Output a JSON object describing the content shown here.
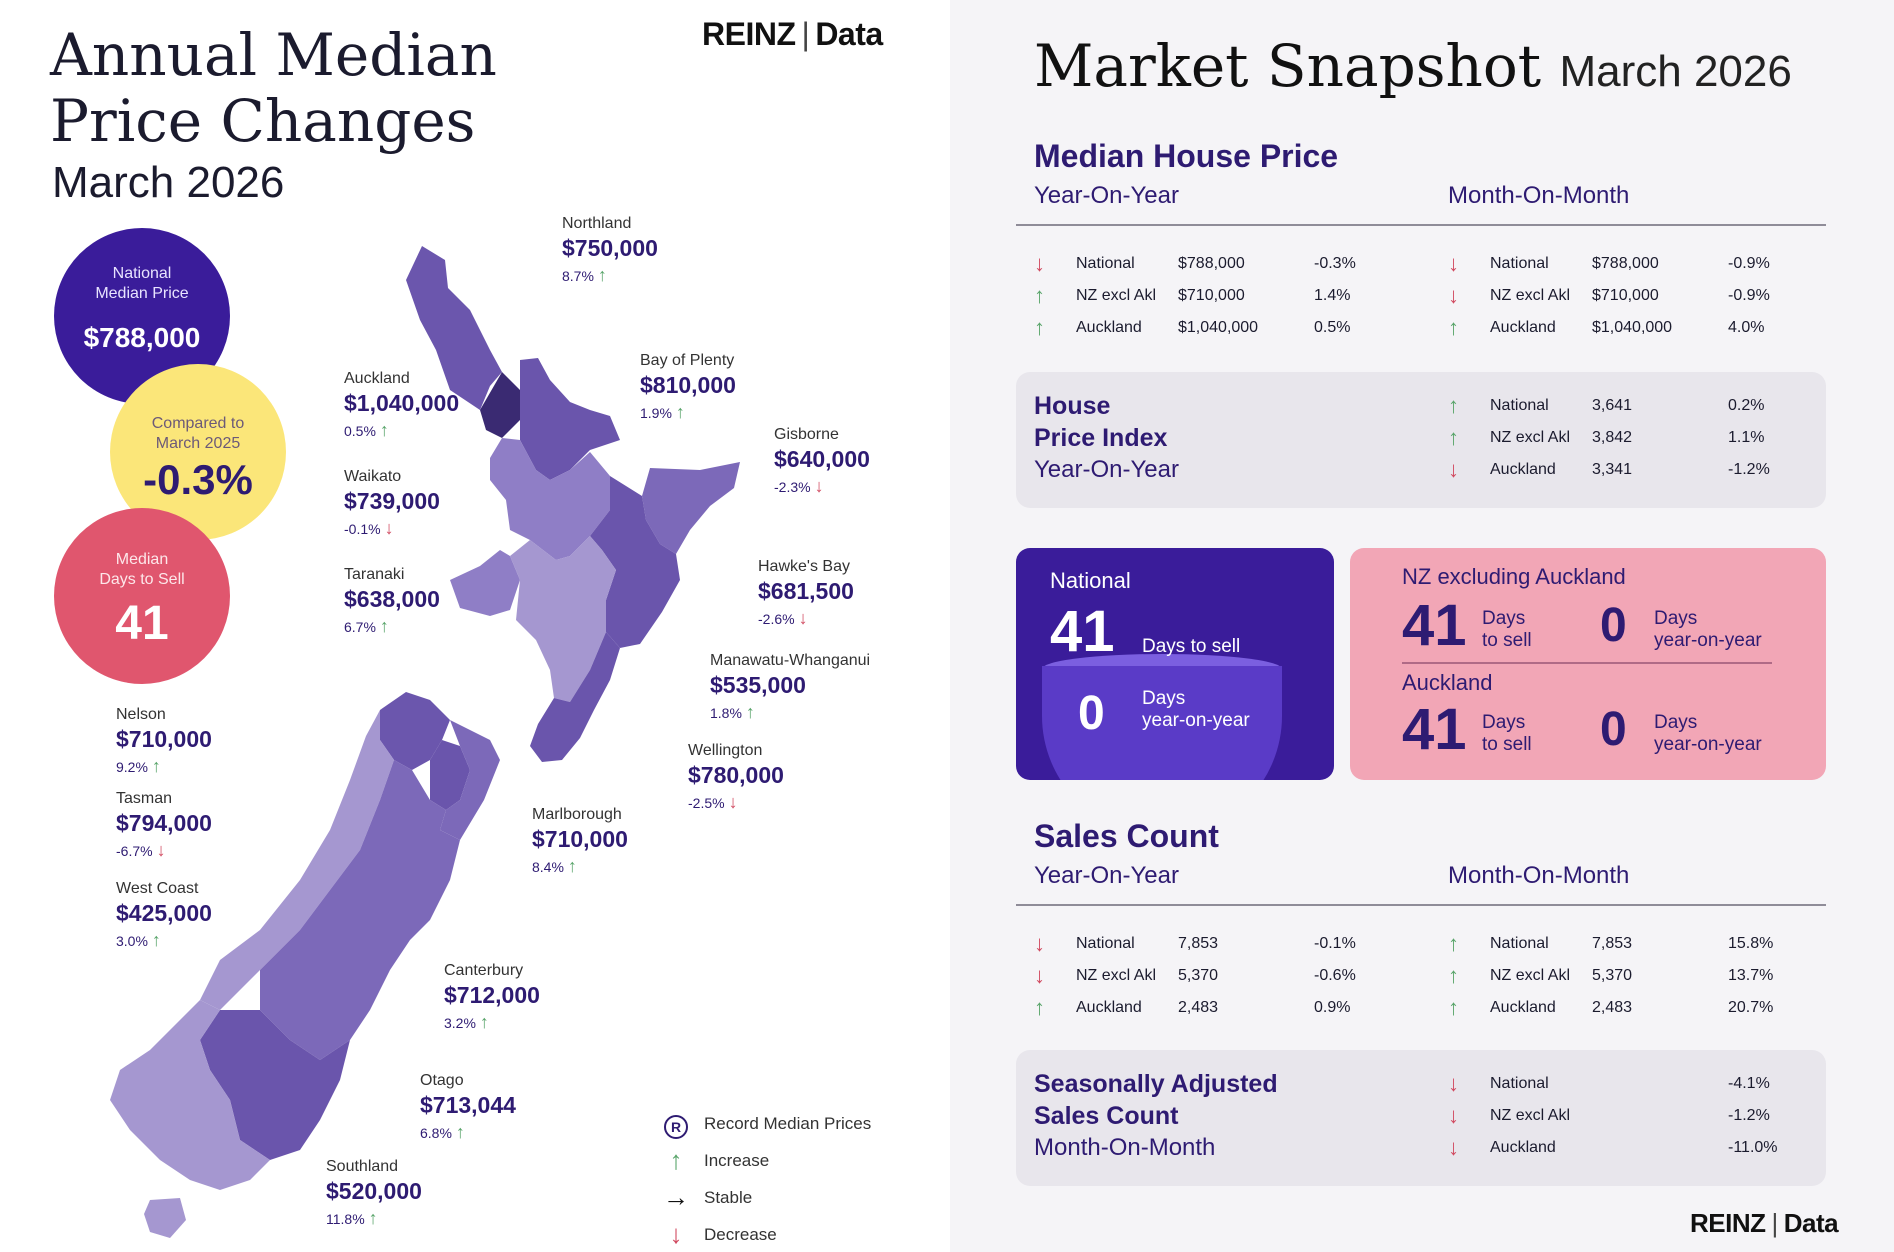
{
  "left": {
    "title_line1": "Annual Median",
    "title_line2": "Price Changes",
    "subtitle": "March 2026",
    "brand": {
      "name": "REINZ",
      "sep": "|",
      "suffix": "Data"
    },
    "national_median": {
      "label_line1": "National",
      "label_line2": "Median Price",
      "value": "$788,000"
    },
    "compared": {
      "label_line1": "Compared to",
      "label_line2": "March 2025",
      "value": "-0.3%"
    },
    "days_to_sell": {
      "label_line1": "Median",
      "label_line2": "Days to Sell",
      "value": "41"
    },
    "regions": [
      {
        "name": "Northland",
        "price": "$750,000",
        "change": "8.7%",
        "dir": "up"
      },
      {
        "name": "Auckland",
        "price": "$1,040,000",
        "change": "0.5%",
        "dir": "up"
      },
      {
        "name": "Bay of Plenty",
        "price": "$810,000",
        "change": "1.9%",
        "dir": "up"
      },
      {
        "name": "Gisborne",
        "price": "$640,000",
        "change": "-2.3%",
        "dir": "down"
      },
      {
        "name": "Waikato",
        "price": "$739,000",
        "change": "-0.1%",
        "dir": "down"
      },
      {
        "name": "Hawke's Bay",
        "price": "$681,500",
        "change": "-2.6%",
        "dir": "down"
      },
      {
        "name": "Taranaki",
        "price": "$638,000",
        "change": "6.7%",
        "dir": "up"
      },
      {
        "name": "Manawatu-Whanganui",
        "price": "$535,000",
        "change": "1.8%",
        "dir": "up"
      },
      {
        "name": "Wellington",
        "price": "$780,000",
        "change": "-2.5%",
        "dir": "down"
      },
      {
        "name": "Nelson",
        "price": "$710,000",
        "change": "9.2%",
        "dir": "up"
      },
      {
        "name": "Tasman",
        "price": "$794,000",
        "change": "-6.7%",
        "dir": "down"
      },
      {
        "name": "Marlborough",
        "price": "$710,000",
        "change": "8.4%",
        "dir": "up"
      },
      {
        "name": "West Coast",
        "price": "$425,000",
        "change": "3.0%",
        "dir": "up"
      },
      {
        "name": "Canterbury",
        "price": "$712,000",
        "change": "3.2%",
        "dir": "up"
      },
      {
        "name": "Otago",
        "price": "$713,044",
        "change": "6.8%",
        "dir": "up"
      },
      {
        "name": "Southland",
        "price": "$520,000",
        "change": "11.8%",
        "dir": "up"
      }
    ],
    "legend": [
      {
        "icon": "record-icon",
        "label": "Record Median Prices"
      },
      {
        "icon": "arrow-up-icon",
        "label": "Increase"
      },
      {
        "icon": "arrow-right-icon",
        "label": "Stable"
      },
      {
        "icon": "arrow-down-icon",
        "label": "Decrease"
      }
    ],
    "legend_badge": "R"
  },
  "right": {
    "title": "Market Snapshot",
    "title_date": "March 2026",
    "median_price": {
      "heading": "Median House Price",
      "yoy_label": "Year-On-Year",
      "mom_label": "Month-On-Month",
      "yoy": [
        {
          "dir": "down",
          "name": "National",
          "value": "$788,000",
          "pct": "-0.3%"
        },
        {
          "dir": "up",
          "name": "NZ excl Akl",
          "value": "$710,000",
          "pct": "1.4%"
        },
        {
          "dir": "up",
          "name": "Auckland",
          "value": "$1,040,000",
          "pct": "0.5%"
        }
      ],
      "mom": [
        {
          "dir": "down",
          "name": "National",
          "value": "$788,000",
          "pct": "-0.9%"
        },
        {
          "dir": "down",
          "name": "NZ excl Akl",
          "value": "$710,000",
          "pct": "-0.9%"
        },
        {
          "dir": "up",
          "name": "Auckland",
          "value": "$1,040,000",
          "pct": "4.0%"
        }
      ]
    },
    "hpi": {
      "heading_line1": "House",
      "heading_line2": "Price Index",
      "sub": "Year-On-Year",
      "rows": [
        {
          "dir": "up",
          "name": "National",
          "value": "3,641",
          "pct": "0.2%"
        },
        {
          "dir": "up",
          "name": "NZ excl Akl",
          "value": "3,842",
          "pct": "1.1%"
        },
        {
          "dir": "down",
          "name": "Auckland",
          "value": "3,341",
          "pct": "-1.2%"
        }
      ]
    },
    "days_national": {
      "label": "National",
      "days": "41",
      "days_label": "Days to sell",
      "yoy": "0",
      "yoy_label_line1": "Days",
      "yoy_label_line2": "year-on-year"
    },
    "days_other": {
      "title": "NZ excluding Auckland",
      "nz_days": "41",
      "nz_days_l1": "Days",
      "nz_days_l2": "to sell",
      "nz_yoy": "0",
      "nz_yoy_l1": "Days",
      "nz_yoy_l2": "year-on-year",
      "akl_title": "Auckland",
      "akl_days": "41",
      "akl_days_l1": "Days",
      "akl_days_l2": "to sell",
      "akl_yoy": "0",
      "akl_yoy_l1": "Days",
      "akl_yoy_l2": "year-on-year"
    },
    "sales": {
      "heading": "Sales Count",
      "yoy_label": "Year-On-Year",
      "mom_label": "Month-On-Month",
      "yoy": [
        {
          "dir": "down",
          "name": "National",
          "value": "7,853",
          "pct": "-0.1%"
        },
        {
          "dir": "down",
          "name": "NZ excl Akl",
          "value": "5,370",
          "pct": "-0.6%"
        },
        {
          "dir": "up",
          "name": "Auckland",
          "value": "2,483",
          "pct": "0.9%"
        }
      ],
      "mom": [
        {
          "dir": "up",
          "name": "National",
          "value": "7,853",
          "pct": "15.8%"
        },
        {
          "dir": "up",
          "name": "NZ excl Akl",
          "value": "5,370",
          "pct": "13.7%"
        },
        {
          "dir": "up",
          "name": "Auckland",
          "value": "2,483",
          "pct": "20.7%"
        }
      ]
    },
    "seasonal": {
      "heading_line1": "Seasonally Adjusted",
      "heading_line2": "Sales Count",
      "sub": "Month-On-Month",
      "rows": [
        {
          "dir": "down",
          "name": "National",
          "pct": "-4.1%"
        },
        {
          "dir": "down",
          "name": "NZ excl Akl",
          "pct": "-1.2%"
        },
        {
          "dir": "down",
          "name": "Auckland",
          "pct": "-11.0%"
        }
      ]
    },
    "brand": {
      "name": "REINZ",
      "sep": "|",
      "suffix": "Data"
    }
  },
  "colors": {
    "accent": "#2e1b72",
    "increase": "#5aa56b",
    "decrease": "#d14b61",
    "national_circle": "#3a1c9a",
    "compared_circle": "#fbe679",
    "days_circle": "#e0566e"
  }
}
